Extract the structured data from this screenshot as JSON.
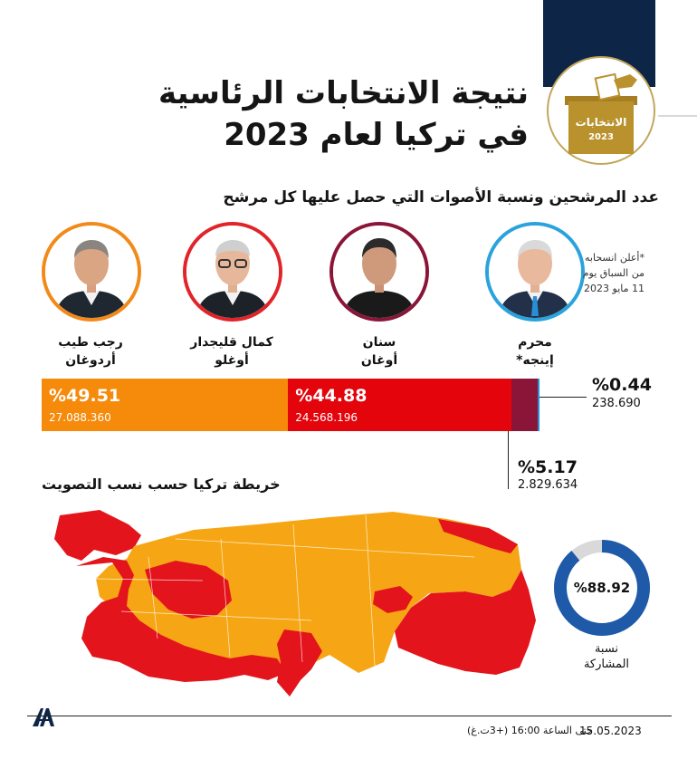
{
  "header": {
    "title_line1": "نتيجة الانتخابات الرئاسية",
    "title_line2": "في تركيا لعام 2023",
    "logo_label": "الانتخابات",
    "logo_year": "2023"
  },
  "subtitle": "عدد المرشحين ونسبة الأصوات التي حصل عليها كل مرشح",
  "candidates": [
    {
      "name_line1": "رجب طيب",
      "name_line2": "أردوغان",
      "ring_color": "#f28a1a"
    },
    {
      "name_line1": "كمال قليجدار",
      "name_line2": "أوغلو",
      "ring_color": "#e0242a"
    },
    {
      "name_line1": "سنان",
      "name_line2": "أوغان",
      "ring_color": "#8a1538"
    },
    {
      "name_line1": "محرم",
      "name_line2": "إينجه*",
      "ring_color": "#2aa3dc"
    }
  ],
  "withdraw_note": {
    "line1": "*أعلن انسحابه",
    "line2": "من السباق يوم",
    "line3": "11 مايو 2023"
  },
  "results": [
    {
      "candidate": "erdogan",
      "pct_text": "%49.51",
      "votes": "27.088.360",
      "share": 49.51,
      "color": "#f58a0b"
    },
    {
      "candidate": "kilicdaroglu",
      "pct_text": "%44.88",
      "votes": "24.568.196",
      "share": 44.88,
      "color": "#e3040c"
    },
    {
      "candidate": "ogan",
      "pct_text": "%5.17",
      "votes": "2.829.634",
      "share": 5.17,
      "color": "#8b1538"
    },
    {
      "candidate": "ince",
      "pct_text": "%0.44",
      "votes": "238.690",
      "share": 0.44,
      "color": "#2a8ed6"
    }
  ],
  "map": {
    "title": "خريطة تركيا حسب نسب التصويت",
    "colors": {
      "erdogan": "#f6a614",
      "kilicdaroglu": "#e3141c"
    }
  },
  "turnout": {
    "pct_text": "%88.92",
    "fraction": 0.8892,
    "label_line1": "نسبة",
    "label_line2": "المشاركة",
    "color": "#1e5aa8",
    "rest_color": "#d9d9d9"
  },
  "footer": {
    "date": "15.05.2023",
    "time_note": "حتى الساعة 16:00 (+3ت.غ)",
    "agency_logo": "AA"
  },
  "icons": {
    "ballot": "ballot-box-icon",
    "agency": "aa-logo-icon"
  }
}
